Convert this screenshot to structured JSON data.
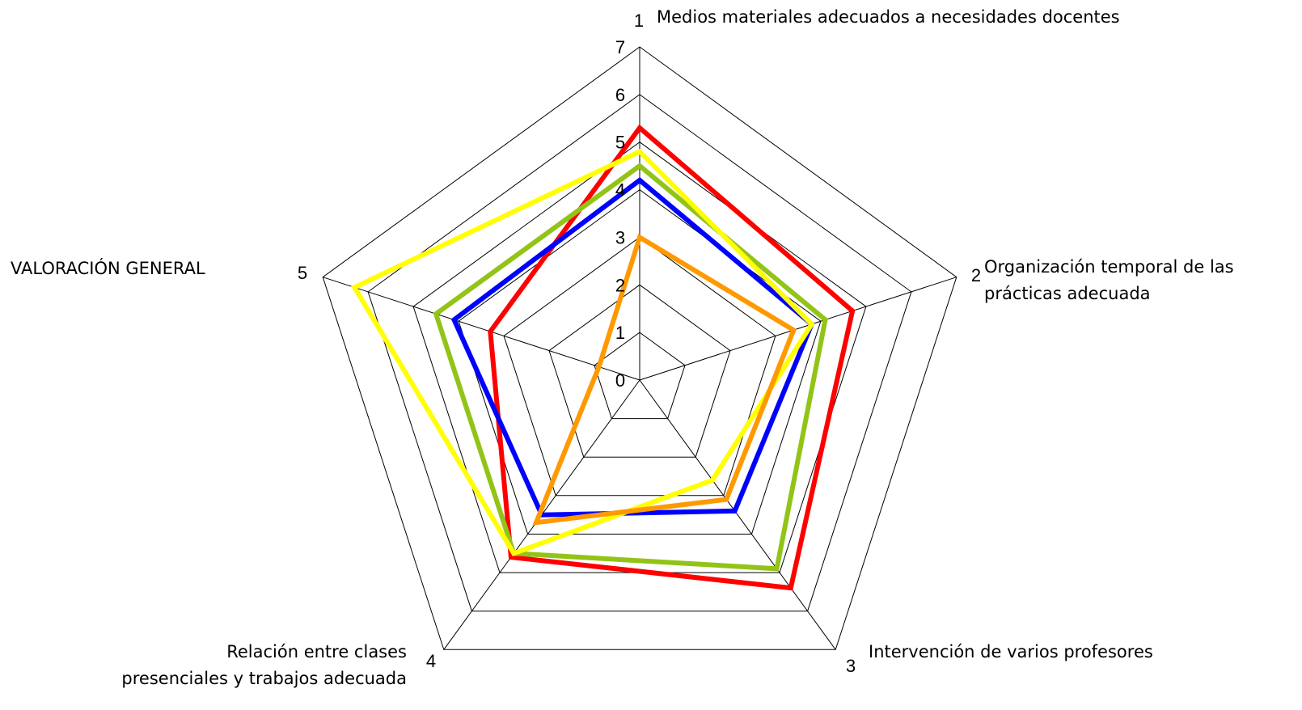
{
  "chart_data": {
    "type": "radar",
    "title": "",
    "axes": [
      {
        "number": "1",
        "label_lines": [
          "Medios materiales adecuados a necesidades docentes"
        ]
      },
      {
        "number": "2",
        "label_lines": [
          "Organización temporal de las",
          "prácticas adecuada"
        ]
      },
      {
        "number": "3",
        "label_lines": [
          "Intervención de varios profesores"
        ]
      },
      {
        "number": "4",
        "label_lines": [
          "Relación entre clases",
          "presenciales y trabajos adecuada"
        ]
      },
      {
        "number": "5",
        "label_lines": [
          "VALORACIÓN GENERAL"
        ]
      }
    ],
    "rlim": [
      0,
      7
    ],
    "ticks": [
      "0",
      "1",
      "2",
      "3",
      "4",
      "5",
      "6",
      "7"
    ],
    "grid": true,
    "legend": "none",
    "series": [
      {
        "color": "#ff0000",
        "values": [
          5.3,
          4.7,
          5.4,
          4.6,
          3.3
        ]
      },
      {
        "color": "#0000ff",
        "values": [
          4.2,
          3.8,
          3.4,
          3.5,
          4.1
        ]
      },
      {
        "color": "#92c418",
        "values": [
          4.5,
          4.1,
          4.9,
          4.5,
          4.5
        ]
      },
      {
        "color": "#ffff00",
        "values": [
          4.8,
          3.8,
          2.6,
          4.5,
          6.3
        ]
      },
      {
        "color": "#ff9900",
        "values": [
          3.0,
          3.4,
          3.1,
          3.7,
          0.9
        ]
      }
    ]
  }
}
